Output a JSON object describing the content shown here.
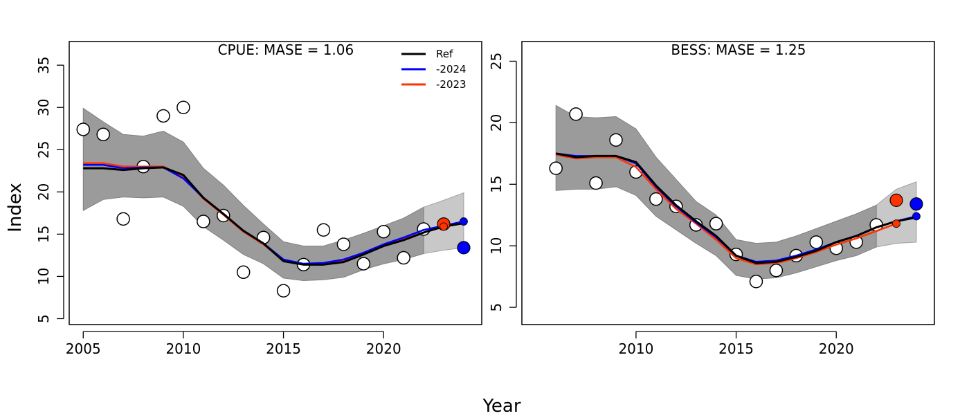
{
  "figure": {
    "xlabel": "Year",
    "ylabel": "Index"
  },
  "chart_data": [
    {
      "type": "line",
      "title": "CPUE: MASE = 1.06",
      "xlim": [
        2004.3,
        2024.9
      ],
      "ylim": [
        4.3,
        37.8
      ],
      "x_ticks": [
        2005,
        2010,
        2015,
        2020
      ],
      "y_ticks": [
        5,
        10,
        15,
        20,
        25,
        30,
        35
      ],
      "legend": {
        "placement": "top-right",
        "entries": [
          {
            "label": "Ref",
            "color": "#000000"
          },
          {
            "label": "-2024",
            "color": "#0000ff"
          },
          {
            "label": "-2023",
            "color": "#ff3300"
          }
        ]
      },
      "band": {
        "x": [
          2005,
          2006,
          2007,
          2008,
          2009,
          2010,
          2011,
          2012,
          2013,
          2014,
          2015,
          2016,
          2017,
          2018,
          2019,
          2020,
          2021,
          2022
        ],
        "lower": [
          17.8,
          19.1,
          19.4,
          19.3,
          19.4,
          18.3,
          15.9,
          14.3,
          12.6,
          11.5,
          9.8,
          9.5,
          9.6,
          9.9,
          10.8,
          11.5,
          12.0,
          12.7
        ],
        "upper": [
          29.9,
          28.3,
          26.8,
          26.6,
          27.2,
          25.9,
          22.8,
          20.8,
          18.4,
          16.2,
          14.1,
          13.6,
          13.6,
          14.3,
          15.1,
          16.0,
          16.9,
          18.2
        ]
      },
      "forecast_band": {
        "x": [
          2022,
          2023,
          2024
        ],
        "lower": [
          12.7,
          13.1,
          13.4
        ],
        "upper": [
          18.2,
          19.0,
          19.9
        ]
      },
      "observed": {
        "x": [
          2005,
          2006,
          2007,
          2008,
          2009,
          2010,
          2011,
          2012,
          2013,
          2014,
          2015,
          2016,
          2017,
          2018,
          2019,
          2020,
          2021,
          2022
        ],
        "y": [
          27.4,
          26.8,
          16.8,
          23.0,
          29.0,
          30.0,
          16.5,
          17.2,
          10.5,
          14.6,
          8.3,
          11.4,
          15.5,
          13.8,
          11.5,
          15.3,
          12.2,
          15.6
        ]
      },
      "series": [
        {
          "name": "-2023",
          "color": "#ff3300",
          "x": [
            2005,
            2006,
            2007,
            2008,
            2009,
            2010,
            2011,
            2012,
            2013,
            2014,
            2015,
            2016,
            2017,
            2018,
            2019,
            2020,
            2021,
            2022,
            2023
          ],
          "y": [
            23.4,
            23.4,
            23.0,
            23.0,
            23.0,
            21.8,
            19.2,
            17.3,
            15.3,
            13.8,
            11.9,
            11.4,
            11.5,
            11.8,
            12.6,
            13.6,
            14.4,
            15.2,
            15.9
          ]
        },
        {
          "name": "-2024",
          "color": "#0000ff",
          "x": [
            2005,
            2006,
            2007,
            2008,
            2009,
            2010,
            2011,
            2012,
            2013,
            2014,
            2015,
            2016,
            2017,
            2018,
            2019,
            2020,
            2021,
            2022,
            2023,
            2024
          ],
          "y": [
            23.2,
            23.2,
            22.8,
            22.9,
            22.9,
            21.6,
            19.3,
            17.4,
            15.4,
            13.9,
            12.0,
            11.5,
            11.6,
            12.0,
            12.8,
            13.8,
            14.6,
            15.5,
            16.0,
            16.5
          ]
        },
        {
          "name": "Ref",
          "color": "#000000",
          "x": [
            2005,
            2006,
            2007,
            2008,
            2009,
            2010,
            2011,
            2012,
            2013,
            2014,
            2015,
            2016,
            2017,
            2018,
            2019,
            2020,
            2021,
            2022,
            2023,
            2024
          ],
          "y": [
            22.8,
            22.8,
            22.6,
            22.8,
            22.9,
            22.0,
            19.3,
            17.4,
            15.4,
            13.9,
            11.8,
            11.4,
            11.4,
            11.7,
            12.6,
            13.6,
            14.3,
            15.2,
            15.9,
            16.3
          ]
        }
      ],
      "hindcast_points": [
        {
          "series": "-2023",
          "color": "#ff3300",
          "x": 2023,
          "y": 16.2,
          "kind": "observed"
        },
        {
          "series": "-2023",
          "color": "#ff3300",
          "x": 2023,
          "y": 15.9,
          "kind": "predicted"
        },
        {
          "series": "-2024",
          "color": "#0000ff",
          "x": 2024,
          "y": 13.4,
          "kind": "observed"
        },
        {
          "series": "-2024",
          "color": "#0000ff",
          "x": 2024,
          "y": 16.5,
          "kind": "predicted"
        }
      ]
    },
    {
      "type": "line",
      "title": "BESS: MASE = 1.25",
      "xlim": [
        2004.3,
        2024.9
      ],
      "ylim": [
        3.6,
        26.6
      ],
      "x_ticks": [
        2010,
        2015,
        2020
      ],
      "y_ticks": [
        5,
        10,
        15,
        20,
        25
      ],
      "band": {
        "x": [
          2006,
          2007,
          2008,
          2009,
          2010,
          2011,
          2012,
          2013,
          2014,
          2015,
          2016,
          2017,
          2018,
          2019,
          2020,
          2021,
          2022
        ],
        "lower": [
          14.5,
          14.6,
          14.6,
          14.8,
          14.1,
          12.4,
          11.3,
          10.2,
          9.2,
          7.6,
          7.3,
          7.4,
          7.8,
          8.3,
          8.8,
          9.2,
          9.9
        ],
        "upper": [
          21.4,
          20.5,
          20.4,
          20.5,
          19.5,
          17.2,
          15.4,
          13.6,
          12.5,
          10.5,
          10.2,
          10.3,
          10.8,
          11.4,
          12.0,
          12.6,
          13.3
        ]
      },
      "forecast_band": {
        "x": [
          2022,
          2023,
          2024
        ],
        "lower": [
          9.9,
          10.2,
          10.3
        ],
        "upper": [
          13.3,
          14.6,
          15.2
        ]
      },
      "observed": {
        "x": [
          2006,
          2007,
          2008,
          2009,
          2010,
          2011,
          2012,
          2013,
          2014,
          2015,
          2016,
          2017,
          2018,
          2019,
          2020,
          2021,
          2022
        ],
        "y": [
          16.3,
          20.7,
          15.1,
          18.6,
          16.0,
          13.8,
          13.2,
          11.7,
          11.8,
          9.3,
          7.1,
          8.0,
          9.2,
          10.3,
          9.8,
          10.3,
          11.7
        ]
      },
      "series": [
        {
          "name": "-2023",
          "color": "#ff3300",
          "x": [
            2006,
            2007,
            2008,
            2009,
            2010,
            2011,
            2012,
            2013,
            2014,
            2015,
            2016,
            2017,
            2018,
            2019,
            2020,
            2021,
            2022,
            2023
          ],
          "y": [
            17.4,
            17.1,
            17.2,
            17.2,
            16.4,
            14.6,
            13.0,
            11.8,
            10.5,
            9.0,
            8.5,
            8.6,
            9.0,
            9.5,
            10.1,
            10.6,
            11.2,
            11.8
          ]
        },
        {
          "name": "-2024",
          "color": "#0000ff",
          "x": [
            2006,
            2007,
            2008,
            2009,
            2010,
            2011,
            2012,
            2013,
            2014,
            2015,
            2016,
            2017,
            2018,
            2019,
            2020,
            2021,
            2022,
            2023,
            2024
          ],
          "y": [
            17.5,
            17.3,
            17.3,
            17.3,
            16.7,
            14.8,
            13.2,
            11.9,
            10.7,
            9.2,
            8.7,
            8.8,
            9.2,
            9.7,
            10.3,
            10.8,
            11.5,
            12.0,
            12.4
          ]
        },
        {
          "name": "Ref",
          "color": "#000000",
          "x": [
            2006,
            2007,
            2008,
            2009,
            2010,
            2011,
            2012,
            2013,
            2014,
            2015,
            2016,
            2017,
            2018,
            2019,
            2020,
            2021,
            2022,
            2023,
            2024
          ],
          "y": [
            17.5,
            17.2,
            17.3,
            17.3,
            16.8,
            14.9,
            13.3,
            12.0,
            10.8,
            9.2,
            8.6,
            8.7,
            9.1,
            9.6,
            10.3,
            10.8,
            11.5,
            12.0,
            12.3
          ]
        }
      ],
      "hindcast_points": [
        {
          "series": "-2023",
          "color": "#ff3300",
          "x": 2023,
          "y": 13.7,
          "kind": "observed"
        },
        {
          "series": "-2023",
          "color": "#ff3300",
          "x": 2023,
          "y": 11.8,
          "kind": "predicted"
        },
        {
          "series": "-2024",
          "color": "#0000ff",
          "x": 2024,
          "y": 13.4,
          "kind": "observed"
        },
        {
          "series": "-2024",
          "color": "#0000ff",
          "x": 2024,
          "y": 12.4,
          "kind": "predicted"
        }
      ]
    }
  ]
}
